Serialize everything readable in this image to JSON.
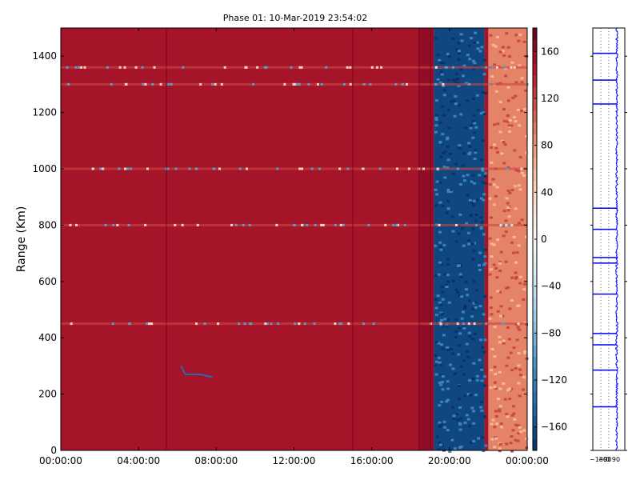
{
  "chart_data": [
    {
      "type": "heatmap",
      "title": "Phase 01: 10-Mar-2019 23:54:02",
      "xlabel": "",
      "ylabel": "Range (Km)",
      "xlim": [
        "00:00:00",
        "24:00:00"
      ],
      "ylim": [
        0,
        1500
      ],
      "x_ticks": [
        "00:00:00",
        "04:00:00",
        "08:00:00",
        "12:00:00",
        "16:00:00",
        "20:00:00",
        "00:00:00"
      ],
      "x_tick_hours": [
        0,
        4,
        8,
        12,
        16,
        20,
        24
      ],
      "y_ticks": [
        0,
        200,
        400,
        600,
        800,
        1000,
        1200,
        1400
      ],
      "colorbar": {
        "range": [
          -180,
          180
        ],
        "ticks": [
          160,
          120,
          80,
          40,
          0,
          -40,
          -80,
          -120,
          -160
        ],
        "colormap": "RdBu_r",
        "colors": [
          "#053061",
          "#2166ac",
          "#4393c3",
          "#92c5de",
          "#d1e5f0",
          "#f7f7f7",
          "#fddbc7",
          "#f4a582",
          "#d6604d",
          "#b2182b",
          "#67001f"
        ]
      },
      "regions": [
        {
          "from_hour": 0,
          "to_hour": 18.4,
          "value": 150
        },
        {
          "from_hour": 18.4,
          "to_hour": 19.2,
          "value": 160
        },
        {
          "from_hour": 19.2,
          "to_hour": 21.8,
          "value": -165
        },
        {
          "from_hour": 21.8,
          "to_hour": 22.0,
          "value": 150
        },
        {
          "from_hour": 22.0,
          "to_hour": 24.0,
          "value": 90
        }
      ],
      "bright_rows_km": [
        1360,
        1300,
        1000,
        800,
        450
      ],
      "trail": {
        "hours": [
          6.2,
          6.4,
          7.2,
          7.8
        ],
        "km": [
          300,
          270,
          270,
          260
        ]
      }
    },
    {
      "type": "line",
      "xlim": [
        -180,
        180
      ],
      "ylim": [
        0,
        1500
      ],
      "x_ticks": [
        "−180",
        "−90",
        "0",
        "90"
      ],
      "x_tick_values": [
        -180,
        -90,
        0,
        90
      ],
      "series_color": "#0000ff",
      "baseline_value": 90,
      "spikes_km": [
        1410,
        1315,
        1230,
        860,
        785,
        685,
        665,
        555,
        415,
        375,
        285,
        155
      ]
    }
  ]
}
